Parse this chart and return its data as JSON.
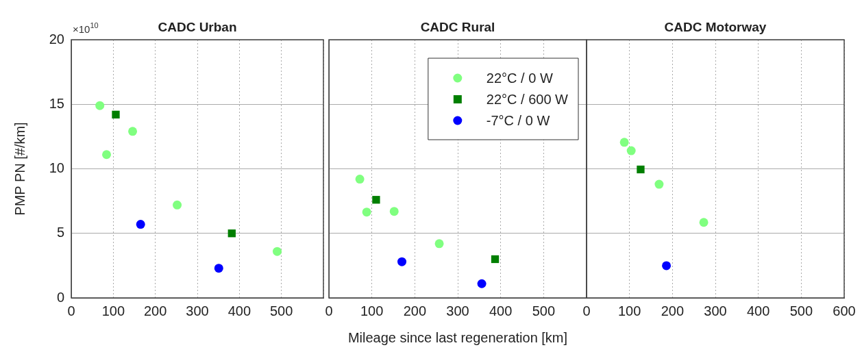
{
  "chart_data": [
    {
      "type": "scatter",
      "title": "CADC Urban",
      "ylabel": "PMP PN [#/km]",
      "annotations": [
        "×10$^{10}$"
      ],
      "grid": true,
      "xlim": [
        0,
        600
      ],
      "xticks": [
        0,
        100,
        200,
        300,
        400,
        500,
        {
          "value": 600,
          "label": null
        }
      ],
      "ylim": [
        0,
        20
      ],
      "yticks": [
        0,
        5,
        10,
        15,
        20
      ],
      "series": [
        {
          "color": "#80ff80",
          "marker": "circle",
          "x": [
            68,
            84,
            146,
            252,
            490
          ],
          "values": [
            14.9,
            11.1,
            12.9,
            7.2,
            3.6
          ]
        },
        {
          "color": "#007f00",
          "marker": "square",
          "x": [
            106,
            382
          ],
          "values": [
            14.2,
            5.0
          ]
        },
        {
          "color": "#0000ff",
          "marker": "circle",
          "x": [
            165,
            351
          ],
          "values": [
            5.7,
            2.3
          ]
        }
      ]
    },
    {
      "type": "scatter",
      "title": "CADC Rural",
      "xlabel": "Mileage since last regeneration [km]",
      "legend": "top right",
      "grid": true,
      "tick_labels": "x",
      "xlim": [
        0,
        600
      ],
      "xticks": [
        0,
        100,
        200,
        300,
        400,
        500,
        {
          "value": 600,
          "label": null
        }
      ],
      "ylim": [
        0,
        20
      ],
      "yticks": [
        0,
        5,
        10,
        15,
        20
      ],
      "series": [
        {
          "name": "22°C / 0 W",
          "color": "#80ff80",
          "marker": "circle",
          "x": [
            72,
            88,
            152,
            257
          ],
          "values": [
            9.2,
            6.65,
            6.7,
            4.2
          ]
        },
        {
          "name": "22°C / 600 W",
          "color": "#007f00",
          "marker": "square",
          "x": [
            110,
            387
          ],
          "values": [
            7.6,
            3.0
          ]
        },
        {
          "name": "-7°C / 0 W",
          "color": "#0000ff",
          "marker": "circle",
          "x": [
            170,
            356
          ],
          "values": [
            2.8,
            1.1
          ]
        }
      ]
    },
    {
      "type": "scatter",
      "title": "CADC Motorway",
      "grid": true,
      "tick_labels": "x",
      "xlim": [
        0,
        600
      ],
      "xticks": [
        0,
        100,
        200,
        300,
        400,
        500,
        600
      ],
      "ylim": [
        0,
        20
      ],
      "yticks": [
        0,
        5,
        10,
        15,
        20
      ],
      "series": [
        {
          "color": "#80ff80",
          "marker": "circle",
          "x": [
            88,
            104,
            169,
            273
          ],
          "values": [
            12.05,
            11.4,
            8.8,
            5.85
          ]
        },
        {
          "color": "#007f00",
          "marker": "square",
          "x": [
            126
          ],
          "values": [
            9.95
          ]
        },
        {
          "color": "#0000ff",
          "marker": "circle",
          "x": [
            186
          ],
          "values": [
            2.5
          ]
        }
      ]
    }
  ]
}
